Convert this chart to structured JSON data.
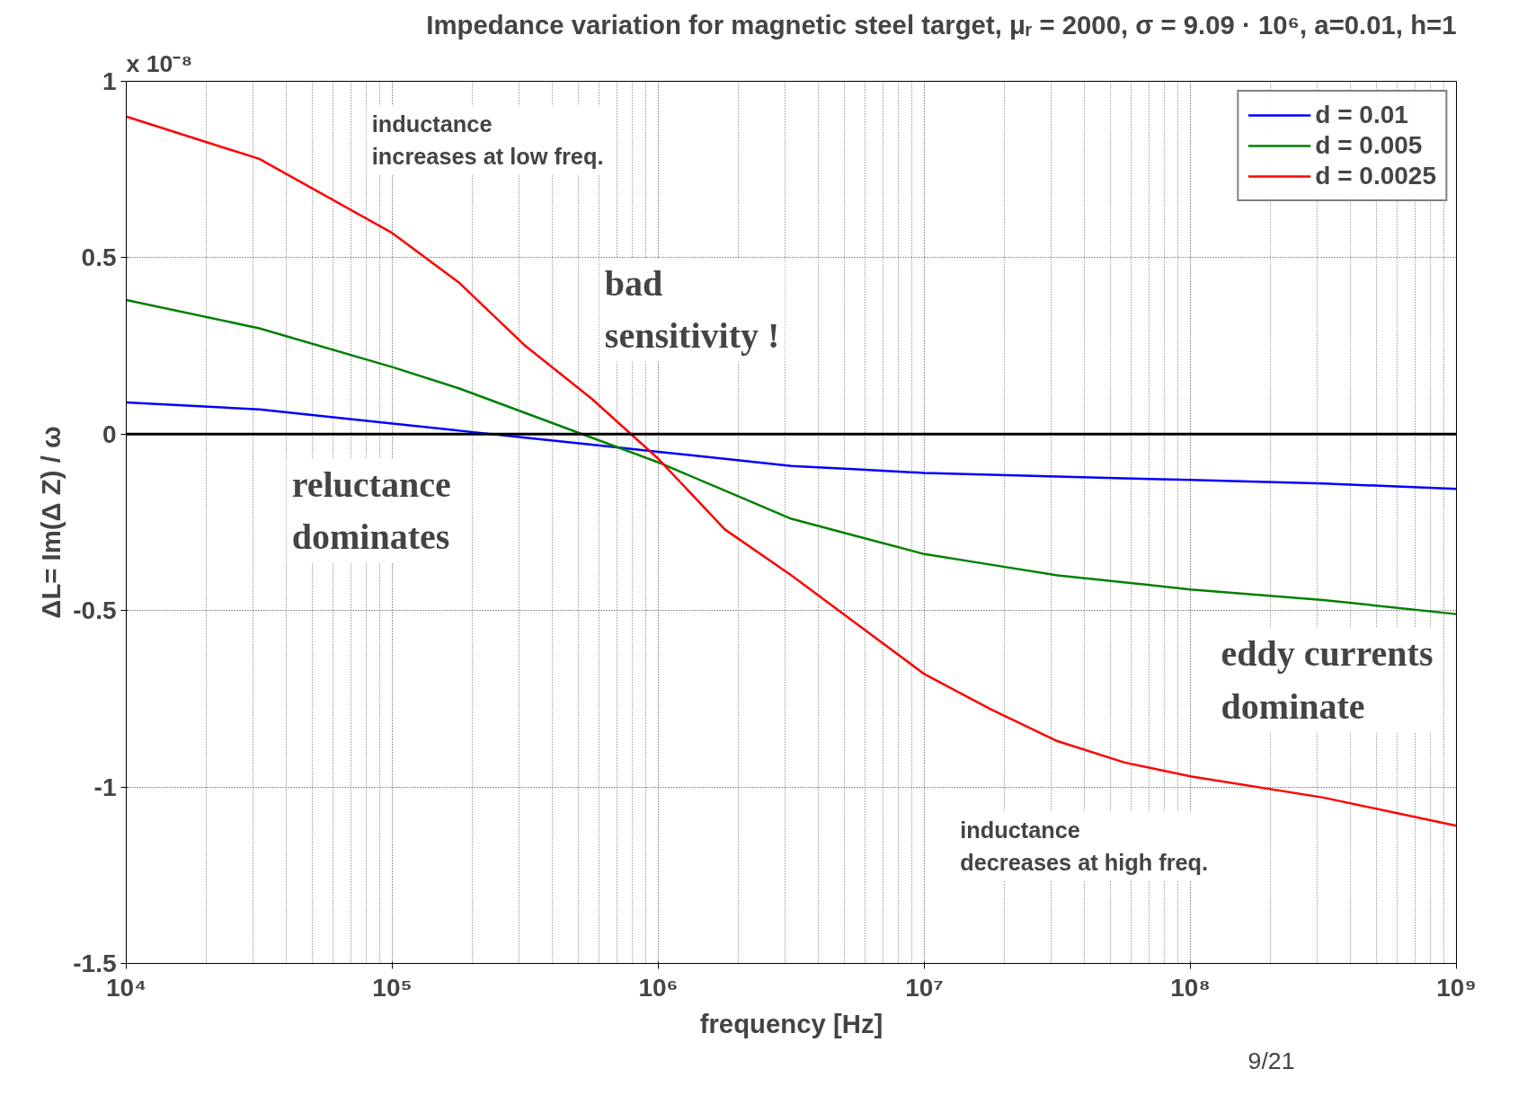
{
  "chart_data": {
    "type": "line",
    "title": "Impedance variation for magnetic steel target, μᵣ = 2000, σ = 9.09 · 10⁶, a=0.01, h=1",
    "xlabel": "frequency [Hz]",
    "ylabel": "ΔL= Im(Δ Z) / ω",
    "log": "x",
    "xlim": [
      10000,
      1000000000
    ],
    "ylim": [
      -1.5,
      1
    ],
    "xticks": [
      {
        "value": 10000,
        "label": "10⁴"
      },
      {
        "value": 100000,
        "label": "10⁵"
      },
      {
        "value": 1000000,
        "label": "10⁶"
      },
      {
        "value": 10000000,
        "label": "10⁷"
      },
      {
        "value": 100000000,
        "label": "10⁸"
      },
      {
        "value": 1000000000,
        "label": "10⁹"
      }
    ],
    "yticks": [
      -1.5,
      -1,
      -0.5,
      0,
      0.5,
      1
    ],
    "x": [
      10000,
      31623,
      100000,
      177828,
      316228,
      562341,
      1000000,
      1778279,
      3162278,
      5623413,
      10000000,
      17782794,
      31622777,
      56234133,
      100000000,
      316227766,
      1000000000
    ],
    "series": [
      {
        "name": "d = 0.01",
        "color": "#0000ff",
        "values": [
          0.09,
          0.07,
          0.03,
          0.01,
          -0.01,
          -0.03,
          -0.05,
          -0.07,
          -0.09,
          -0.1,
          -0.11,
          -0.115,
          -0.12,
          -0.125,
          -0.13,
          -0.14,
          -0.155
        ]
      },
      {
        "name": "d = 0.005",
        "color": "#008000",
        "values": [
          0.38,
          0.3,
          0.19,
          0.13,
          0.06,
          -0.01,
          -0.08,
          -0.16,
          -0.24,
          -0.29,
          -0.34,
          -0.37,
          -0.4,
          -0.42,
          -0.44,
          -0.47,
          -0.51
        ]
      },
      {
        "name": "d = 0.0025",
        "color": "#ff0000",
        "values": [
          0.9,
          0.78,
          0.57,
          0.43,
          0.25,
          0.1,
          -0.07,
          -0.27,
          -0.4,
          -0.54,
          -0.68,
          -0.78,
          -0.87,
          -0.93,
          -0.97,
          -1.03,
          -1.11
        ]
      }
    ],
    "ref_lines": [
      {
        "axis": "y",
        "value": 0,
        "label": null,
        "color": "#000000"
      }
    ],
    "annotations": [
      "x 10⁻⁸",
      "inductance\nincreases at low freq.",
      "bad\nsensitivity !",
      "reluctance\ndominates",
      "eddy currents\ndominate",
      "inductance\ndecreases at high freq.",
      "9/21"
    ],
    "grid": true,
    "legend": "top right",
    "line_style": "solid",
    "marker": "none"
  }
}
